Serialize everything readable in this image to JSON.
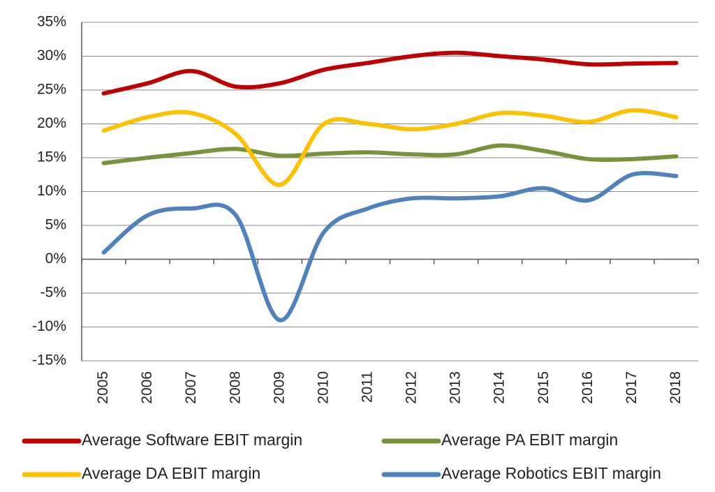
{
  "chart_data": {
    "type": "line",
    "categories": [
      "2005",
      "2006",
      "2007",
      "2008",
      "2009",
      "2010",
      "2011",
      "2012",
      "2013",
      "2014",
      "2015",
      "2016",
      "2017",
      "2018"
    ],
    "series": [
      {
        "name": "Average Software EBIT margin",
        "color": "#c00000",
        "values": [
          24.5,
          26,
          27.8,
          25.5,
          26,
          28,
          29,
          30,
          30.5,
          30,
          29.5,
          28.8,
          28.9,
          29
        ]
      },
      {
        "name": "Average PA EBIT margin",
        "color": "#77933c",
        "values": [
          14.2,
          15,
          15.7,
          16.3,
          15.3,
          15.6,
          15.8,
          15.5,
          15.5,
          16.8,
          16,
          14.8,
          14.8,
          15.2
        ]
      },
      {
        "name": "Average DA EBIT margin",
        "color": "#ffc000",
        "values": [
          19,
          21,
          21.6,
          18.5,
          11,
          20,
          20,
          19.2,
          20,
          21.6,
          21.2,
          20.3,
          22,
          21
        ]
      },
      {
        "name": "Average Robotics EBIT margin",
        "color": "#4f81bd",
        "values": [
          1,
          6.5,
          7.5,
          6.5,
          -9,
          4,
          7.5,
          9,
          9,
          9.3,
          10.5,
          8.7,
          12.5,
          12.3
        ]
      }
    ],
    "ylim": [
      -15,
      35
    ],
    "yticks": [
      {
        "value": -15,
        "label": "-15%"
      },
      {
        "value": -10,
        "label": "-10%"
      },
      {
        "value": -5,
        "label": "-5%"
      },
      {
        "value": 0,
        "label": "0%"
      },
      {
        "value": 5,
        "label": "5%"
      },
      {
        "value": 10,
        "label": "10%"
      },
      {
        "value": 15,
        "label": "15%"
      },
      {
        "value": 20,
        "label": "20%"
      },
      {
        "value": 25,
        "label": "25%"
      },
      {
        "value": 30,
        "label": "30%"
      },
      {
        "value": 35,
        "label": "35%"
      }
    ],
    "grid": true,
    "legend": "bottom"
  }
}
